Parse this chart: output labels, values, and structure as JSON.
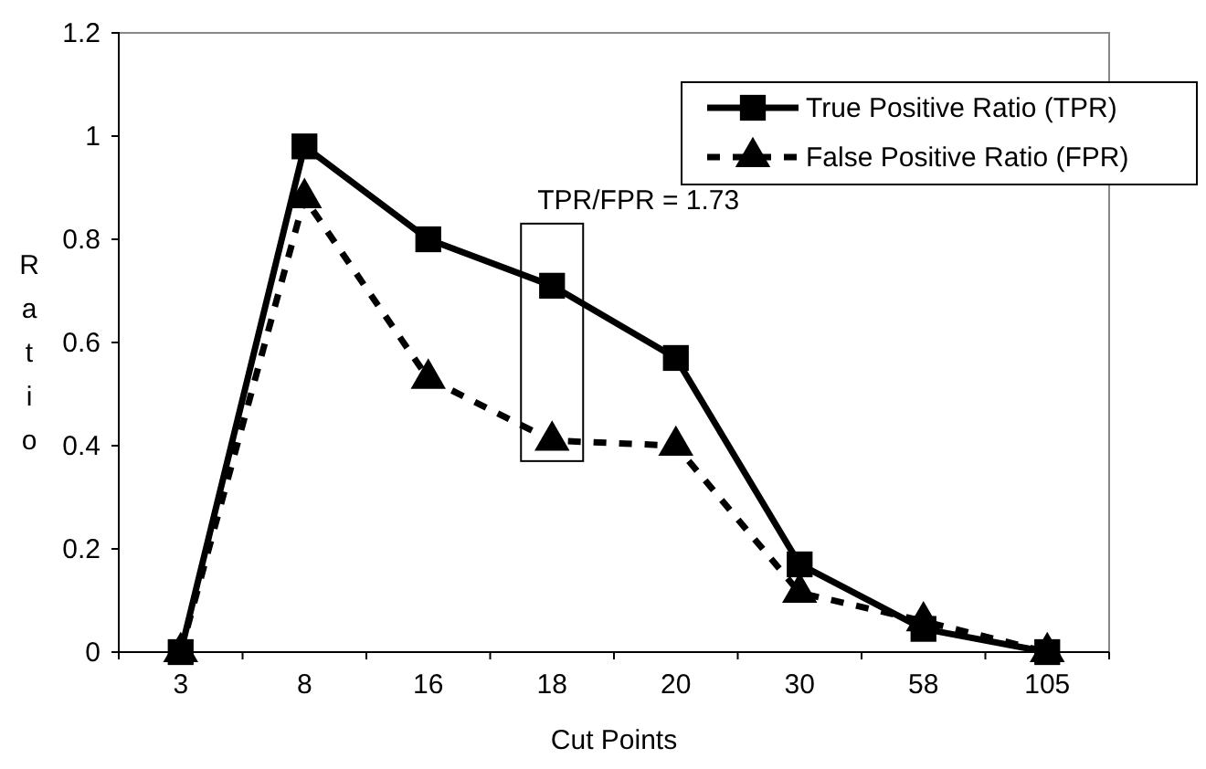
{
  "chart_data": {
    "type": "line",
    "xlabel": "Cut Points",
    "ylabel": "Ratio",
    "categories": [
      "3",
      "8",
      "16",
      "18",
      "20",
      "30",
      "58",
      "105"
    ],
    "series": [
      {
        "name": "True Positive Ratio (TPR)",
        "color": "#000000",
        "marker": "square",
        "line_style": "solid",
        "values": [
          0,
          0.98,
          0.8,
          0.71,
          0.57,
          0.17,
          0.045,
          0
        ]
      },
      {
        "name": "False Positive Ratio (FPR)",
        "color": "#000000",
        "marker": "triangle",
        "line_style": "dashed",
        "values": [
          0,
          0.88,
          0.53,
          0.41,
          0.4,
          0.115,
          0.06,
          0
        ]
      }
    ],
    "ylim": [
      0,
      1.2
    ],
    "yticks": [
      0,
      0.2,
      0.4,
      0.6,
      0.8,
      1,
      1.2
    ],
    "grid": false,
    "legend": "top right",
    "annotations": [
      {
        "text": "TPR/FPR = 1.73",
        "x": "18",
        "y": 0.71
      }
    ]
  }
}
